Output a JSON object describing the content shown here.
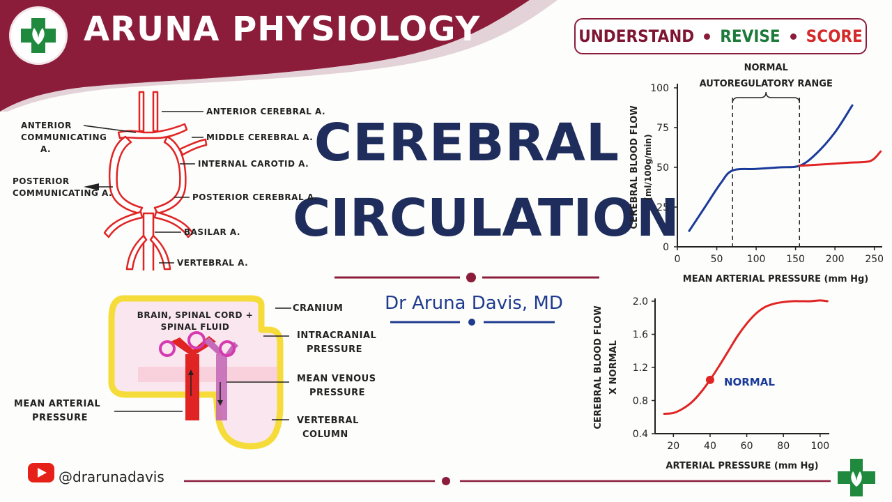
{
  "brand": "ARUNA PHYSIOLOGY",
  "tagline": [
    "UNDERSTAND",
    "REVISE",
    "SCORE"
  ],
  "title_line1": "CEREBRAL",
  "title_line2": "CIRCULATION",
  "author": "Dr Aruna Davis, MD",
  "social_handle": "@drarunadavis",
  "colors": {
    "maroon": "#8b1d3b",
    "navy": "#1f2d5c",
    "red": "#e02424",
    "blue": "#1a3a9a",
    "green": "#1d7a3a"
  },
  "circle_of_willis_labels": {
    "anterior_communicating": [
      "ANTERIOR",
      "COMMUNICATING",
      "A."
    ],
    "posterior_communicating": [
      "POSTERIOR",
      "COMMUNICATING A."
    ],
    "anterior_cerebral": "ANTERIOR CEREBRAL A.",
    "middle_cerebral": "MIDDLE CEREBRAL A.",
    "internal_carotid": "INTERNAL CAROTID A.",
    "posterior_cerebral": "POSTERIOR CEREBRAL A.",
    "basilar": "BASILAR A.",
    "vertebral": "VERTEBRAL A."
  },
  "cranium_labels": {
    "inner": [
      "BRAIN, SPINAL CORD +",
      "SPINAL FLUID"
    ],
    "cranium": "CRANIUM",
    "intracranial": [
      "INTRACRANIAL",
      "PRESSURE"
    ],
    "venous": [
      "MEAN VENOUS",
      "PRESSURE"
    ],
    "vertebral_column": [
      "VERTEBRAL",
      "COLUMN"
    ],
    "arterial": [
      "MEAN ARTERIAL",
      "PRESSURE"
    ]
  },
  "chart_data": [
    {
      "type": "line",
      "annotation": [
        "NORMAL",
        "AUTOREGULATORY RANGE"
      ],
      "xlabel": "MEAN ARTERIAL PRESSURE (mm Hg)",
      "ylabel": [
        "CEREBRAL BLOOD FLOW",
        "(ml/100g/min)"
      ],
      "xlim": [
        0,
        260
      ],
      "ylim": [
        0,
        100
      ],
      "xticks": [
        0,
        50,
        100,
        150,
        200,
        250
      ],
      "yticks": [
        0,
        25,
        50,
        75,
        100
      ],
      "autoregulatory_range": [
        70,
        155
      ],
      "series": [
        {
          "color": "#1a3a9a",
          "x": [
            15,
            35,
            55,
            70,
            100,
            130,
            155,
            175,
            200,
            222
          ],
          "y": [
            10,
            25,
            40,
            48,
            49,
            50,
            51,
            58,
            72,
            89
          ]
        },
        {
          "color": "#e02424",
          "x": [
            155,
            190,
            220,
            245,
            258
          ],
          "y": [
            51,
            52,
            53,
            54,
            60
          ]
        }
      ],
      "grid": false
    },
    {
      "type": "line",
      "annotation": "NORMAL",
      "annotation_point": [
        40,
        1.05
      ],
      "xlabel": "ARTERIAL PRESSURE (mm Hg)",
      "ylabel": [
        "CEREBRAL BLOOD FLOW",
        "X NORMAL"
      ],
      "xlim": [
        10,
        105
      ],
      "ylim": [
        0.4,
        2.0
      ],
      "xticks": [
        20,
        40,
        60,
        80,
        100
      ],
      "yticks": [
        "0.4",
        "0.8",
        "1.2",
        "1.6",
        "2.0"
      ],
      "series": [
        {
          "color": "#e02424",
          "x": [
            15,
            20,
            25,
            30,
            35,
            40,
            45,
            50,
            55,
            60,
            65,
            70,
            75,
            80,
            85,
            90,
            95,
            100,
            104
          ],
          "y": [
            0.64,
            0.65,
            0.7,
            0.78,
            0.9,
            1.05,
            1.22,
            1.4,
            1.58,
            1.73,
            1.85,
            1.93,
            1.97,
            1.99,
            2.0,
            2.0,
            2.0,
            2.01,
            2.0
          ]
        }
      ],
      "grid": false
    }
  ]
}
